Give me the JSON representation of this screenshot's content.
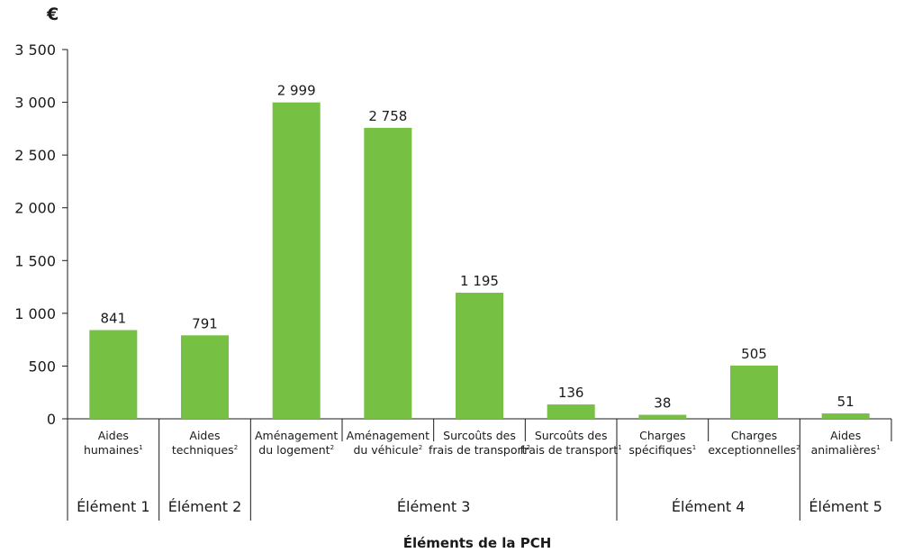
{
  "chart_data": {
    "type": "bar",
    "unit_label": "€",
    "xlabel": "Éléments de la PCH",
    "ylim": [
      0,
      3500
    ],
    "yticks": [
      0,
      500,
      1000,
      1500,
      2000,
      2500,
      3000,
      3500
    ],
    "ytick_labels": [
      "0",
      "500",
      "1 000",
      "1 500",
      "2 000",
      "2 500",
      "3 000",
      "3 500"
    ],
    "categories": [
      {
        "lines": [
          "Aides",
          "humaines"
        ],
        "sup": "1"
      },
      {
        "lines": [
          "Aides",
          "techniques"
        ],
        "sup": "2"
      },
      {
        "lines": [
          "Aménagement",
          "du logement"
        ],
        "sup": "2"
      },
      {
        "lines": [
          "Aménagement",
          "du véhicule"
        ],
        "sup": "2"
      },
      {
        "lines": [
          "Surcoûts des",
          "frais de transport"
        ],
        "sup": "2"
      },
      {
        "lines": [
          "Surcoûts des",
          "frais de transport"
        ],
        "sup": "1"
      },
      {
        "lines": [
          "Charges",
          "spécifiques"
        ],
        "sup": "1"
      },
      {
        "lines": [
          "Charges",
          "exceptionnelles"
        ],
        "sup": "2"
      },
      {
        "lines": [
          "Aides",
          "animalières"
        ],
        "sup": "1"
      }
    ],
    "values": [
      841,
      791,
      2999,
      2758,
      1195,
      136,
      38,
      505,
      51
    ],
    "value_labels": [
      "841",
      "791",
      "2 999",
      "2 758",
      "1 195",
      "136",
      "38",
      "505",
      "51"
    ],
    "groups": [
      {
        "label": "Élément 1",
        "start": 0,
        "end": 0
      },
      {
        "label": "Élément 2",
        "start": 1,
        "end": 1
      },
      {
        "label": "Élément 3",
        "start": 2,
        "end": 5
      },
      {
        "label": "Élément 4",
        "start": 6,
        "end": 7
      },
      {
        "label": "Élément 5",
        "start": 8,
        "end": 8
      }
    ],
    "bar_color": "#76c043",
    "axis_color": "#1a1a1a",
    "grid": false,
    "legend": "none"
  }
}
